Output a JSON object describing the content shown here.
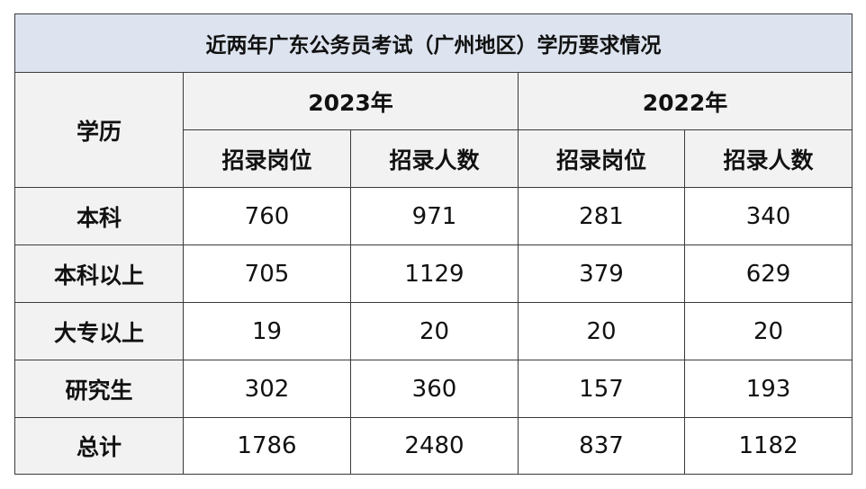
{
  "title": "近两年广东公务员考试（广州地区）学历要求情况",
  "header": {
    "label": "学历",
    "years": [
      "2023年",
      "2022年"
    ],
    "subheaders": [
      "招录岗位",
      "招录人数",
      "招录岗位",
      "招录人数"
    ]
  },
  "rows": [
    [
      "本科",
      760,
      971,
      281,
      340
    ],
    [
      "本科以上",
      705,
      1129,
      379,
      629
    ],
    [
      "大专以上",
      19,
      20,
      20,
      20
    ],
    [
      "研究生",
      302,
      360,
      157,
      193
    ],
    [
      "总计",
      1786,
      2480,
      837,
      1182
    ]
  ]
}
